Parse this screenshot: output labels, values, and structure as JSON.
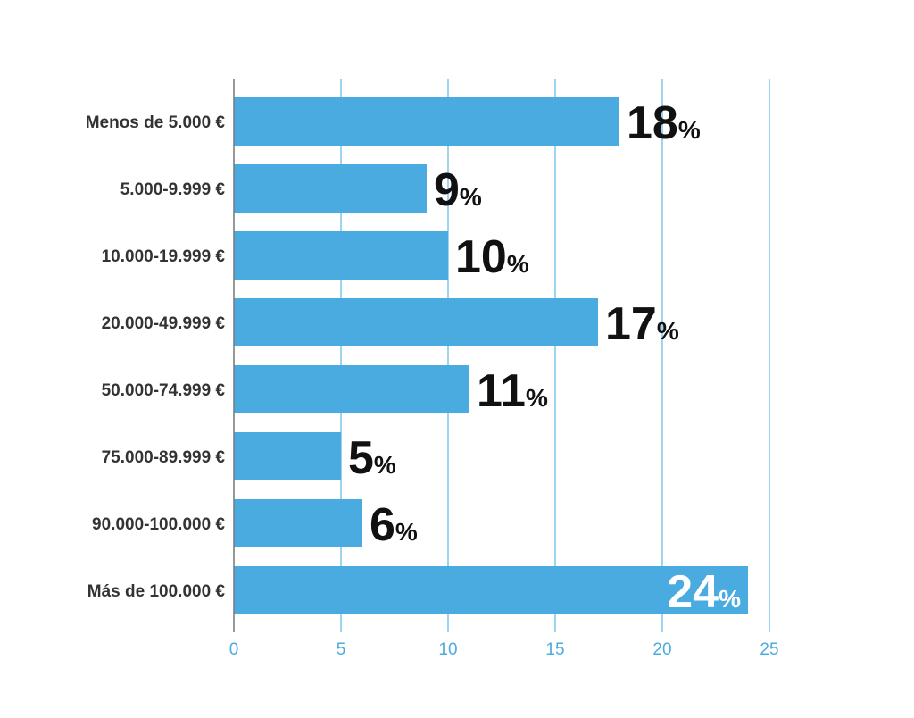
{
  "chart_data": {
    "type": "bar",
    "orientation": "horizontal",
    "categories": [
      "Menos de 5.000 €",
      "5.000-9.999 €",
      "10.000-19.999 €",
      "20.000-49.999 €",
      "50.000-74.999 €",
      "75.000-89.999 €",
      "90.000-100.000 €",
      "Más de 100.000 €"
    ],
    "values": [
      18,
      9,
      10,
      17,
      11,
      5,
      6,
      24
    ],
    "value_labels": [
      "18",
      "9",
      "10",
      "17",
      "11",
      "5",
      "6",
      "24"
    ],
    "value_suffix": "%",
    "xlim": [
      0,
      25
    ],
    "xticks": [
      0,
      5,
      10,
      15,
      20,
      25
    ],
    "xtick_labels": [
      "0",
      "5",
      "10",
      "15",
      "20",
      "25"
    ],
    "grid": "vertical",
    "title": "",
    "xlabel": "",
    "ylabel": "",
    "label_inside_last": true
  },
  "colors": {
    "bar": "#49abdf",
    "grid": "#5fb8e3",
    "axis_line": "#777777",
    "tick_text": "#4aacdf",
    "category_text": "#333333",
    "value_text": "#111111",
    "value_text_inside": "#ffffff"
  }
}
